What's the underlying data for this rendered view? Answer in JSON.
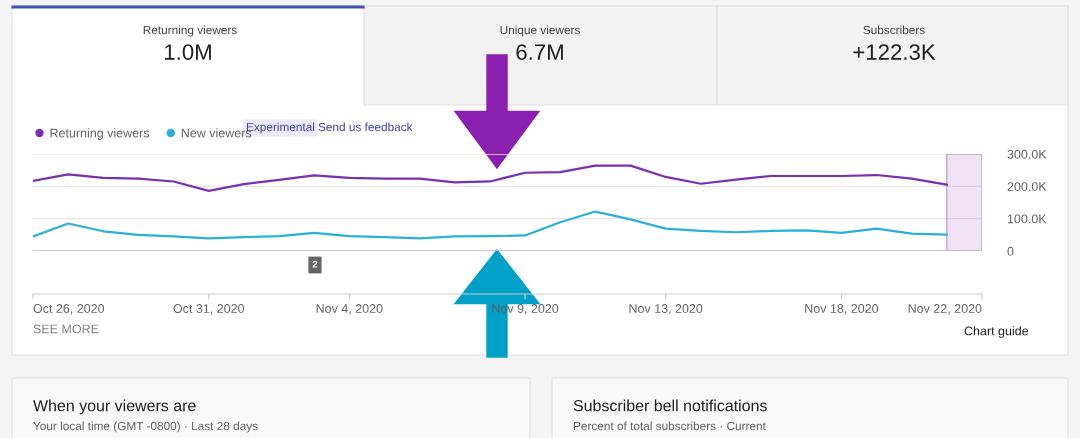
{
  "chart_data": {
    "type": "line",
    "x": [
      "2020-10-26",
      "2020-10-27",
      "2020-10-28",
      "2020-10-29",
      "2020-10-30",
      "2020-10-31",
      "2020-11-01",
      "2020-11-02",
      "2020-11-03",
      "2020-11-04",
      "2020-11-05",
      "2020-11-06",
      "2020-11-07",
      "2020-11-08",
      "2020-11-09",
      "2020-11-10",
      "2020-11-11",
      "2020-11-12",
      "2020-11-13",
      "2020-11-14",
      "2020-11-15",
      "2020-11-16",
      "2020-11-17",
      "2020-11-18",
      "2020-11-19",
      "2020-11-20",
      "2020-11-21"
    ],
    "series": [
      {
        "name": "Returning viewers",
        "color": "#7b2fae",
        "values": [
          217000,
          237000,
          226000,
          224000,
          215000,
          186000,
          207000,
          220000,
          234000,
          226000,
          224000,
          224000,
          212000,
          215000,
          242000,
          244000,
          264000,
          264000,
          229000,
          208000,
          221000,
          232000,
          232000,
          232000,
          235000,
          224000,
          205000
        ]
      },
      {
        "name": "New viewers",
        "color": "#2ab0d8",
        "values": [
          45000,
          85000,
          61000,
          50000,
          45000,
          39000,
          43000,
          46000,
          56000,
          46000,
          43000,
          39000,
          45000,
          46000,
          48000,
          89000,
          122000,
          98000,
          69000,
          62000,
          58000,
          62000,
          64000,
          56000,
          69000,
          54000,
          51000
        ]
      }
    ],
    "xlim": [
      "2020-10-26",
      "2020-11-22"
    ],
    "xticks": [
      {
        "value": "2020-10-26",
        "label": "Oct 26, 2020"
      },
      {
        "value": "2020-10-31",
        "label": "Oct 31, 2020"
      },
      {
        "value": "2020-11-04",
        "label": "Nov 4, 2020"
      },
      {
        "value": "2020-11-09",
        "label": "Nov 9, 2020"
      },
      {
        "value": "2020-11-13",
        "label": "Nov 13, 2020"
      },
      {
        "value": "2020-11-18",
        "label": "Nov 18, 2020"
      },
      {
        "value": "2020-11-22",
        "label": "Nov 22, 2020"
      }
    ],
    "ylim": [
      0,
      300000
    ],
    "yticks": [
      {
        "value": 0,
        "label": "0"
      },
      {
        "value": 100000,
        "label": "100.0K"
      },
      {
        "value": 200000,
        "label": "200.0K"
      },
      {
        "value": 300000,
        "label": "300.0K"
      }
    ],
    "bands": [
      {
        "axis": "x",
        "from": "2020-11-21",
        "to": "2020-11-22",
        "color": "#b070c8"
      }
    ],
    "grid": "y",
    "legend": "top left",
    "marker": "none",
    "line_style": "solid",
    "annotations": [
      "Returning viewers",
      "1.0M",
      "Unique viewers",
      "6.7M",
      "Subscribers",
      "+122.3K",
      "Experimental",
      "Send us feedback",
      "SEE MORE",
      "Chart guide",
      "When your viewers are",
      "Your local time (GMT -0800) · Last 28 days",
      "Subscriber bell notifications",
      "Percent of total subscribers · Current",
      "2"
    ]
  }
}
